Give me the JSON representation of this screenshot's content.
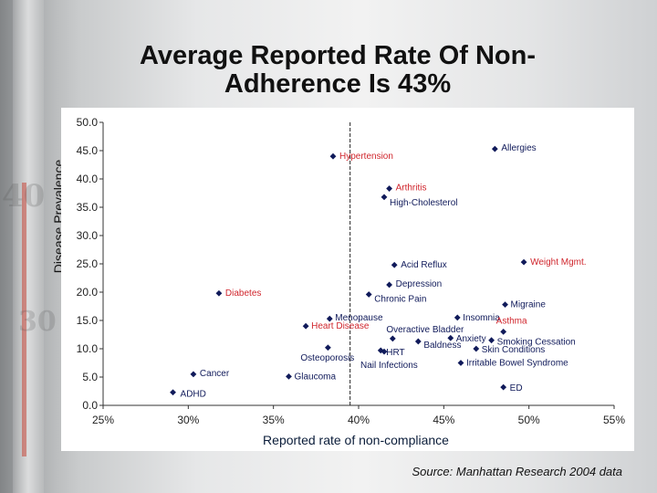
{
  "title_line1": "Average Reported Rate Of Non-",
  "title_line2": "Adherence Is 43%",
  "source": "Source: Manhattan Research 2004 data",
  "colors": {
    "marker": "#101a5a",
    "label_default": "#101a5a",
    "label_highlight": "#d0262d",
    "axis": "#333333",
    "reference_line": "#222222"
  },
  "chart_data": {
    "type": "scatter",
    "title": "",
    "xlabel": "Reported rate of non-compliance",
    "ylabel": "Disease Prevalence",
    "xlim": [
      25,
      55
    ],
    "ylim": [
      0,
      50
    ],
    "x_ticks": [
      25,
      30,
      35,
      40,
      45,
      50,
      55
    ],
    "x_tick_labels": [
      "25%",
      "30%",
      "35%",
      "40%",
      "45%",
      "50%",
      "55%"
    ],
    "y_ticks": [
      0,
      5,
      10,
      15,
      20,
      25,
      30,
      35,
      40,
      45,
      50
    ],
    "y_tick_labels": [
      "0.0",
      "5.0",
      "10.0",
      "15.0",
      "20.0",
      "25.0",
      "30.0",
      "35.0",
      "40.0",
      "45.0",
      "50.0"
    ],
    "reference_x": 39.5,
    "grid": false,
    "points": [
      {
        "label": "Allergies",
        "x": 48.0,
        "y": 45.3,
        "highlight": false
      },
      {
        "label": "Hypertension",
        "x": 38.5,
        "y": 44.0,
        "highlight": true
      },
      {
        "label": "Arthritis",
        "x": 41.8,
        "y": 38.3,
        "highlight": true
      },
      {
        "label": "High-Cholesterol",
        "x": 41.5,
        "y": 36.8,
        "highlight": false
      },
      {
        "label": "Acid Reflux",
        "x": 42.1,
        "y": 24.8,
        "highlight": false
      },
      {
        "label": "Weight Mgmt.",
        "x": 49.7,
        "y": 25.3,
        "highlight": true
      },
      {
        "label": "Depression",
        "x": 41.8,
        "y": 21.3,
        "highlight": false
      },
      {
        "label": "Chronic Pain",
        "x": 40.6,
        "y": 19.6,
        "highlight": false
      },
      {
        "label": "Diabetes",
        "x": 31.8,
        "y": 19.8,
        "highlight": true
      },
      {
        "label": "Migraine",
        "x": 48.6,
        "y": 17.8,
        "highlight": false
      },
      {
        "label": "Menopause",
        "x": 38.3,
        "y": 15.3,
        "highlight": false
      },
      {
        "label": "Heart Disease",
        "x": 36.9,
        "y": 14.0,
        "highlight": true
      },
      {
        "label": "Insomnia",
        "x": 45.8,
        "y": 15.5,
        "highlight": false
      },
      {
        "label": "Overactive Bladder",
        "x": 42.0,
        "y": 11.8,
        "highlight": false
      },
      {
        "label": "Asthma",
        "x": 48.5,
        "y": 13.0,
        "highlight": true
      },
      {
        "label": "Anxiety",
        "x": 45.4,
        "y": 11.9,
        "highlight": false
      },
      {
        "label": "Smoking Cessation",
        "x": 47.8,
        "y": 11.5,
        "highlight": false
      },
      {
        "label": "Baldness",
        "x": 43.5,
        "y": 11.3,
        "highlight": false
      },
      {
        "label": "Skin Conditions",
        "x": 46.9,
        "y": 10.0,
        "highlight": false
      },
      {
        "label": "Osteoporosis",
        "x": 38.2,
        "y": 10.2,
        "highlight": false
      },
      {
        "label": "HRT",
        "x": 41.3,
        "y": 9.7,
        "highlight": false
      },
      {
        "label": "Nail Infections",
        "x": 41.5,
        "y": 9.5,
        "highlight": false
      },
      {
        "label": "Irritable Bowel Syndrome",
        "x": 46.0,
        "y": 7.5,
        "highlight": false
      },
      {
        "label": "Cancer",
        "x": 30.3,
        "y": 5.5,
        "highlight": false
      },
      {
        "label": "Glaucoma",
        "x": 35.9,
        "y": 5.1,
        "highlight": false
      },
      {
        "label": "ED",
        "x": 48.5,
        "y": 3.2,
        "highlight": false
      },
      {
        "label": "ADHD",
        "x": 29.1,
        "y": 2.3,
        "highlight": false
      }
    ]
  }
}
